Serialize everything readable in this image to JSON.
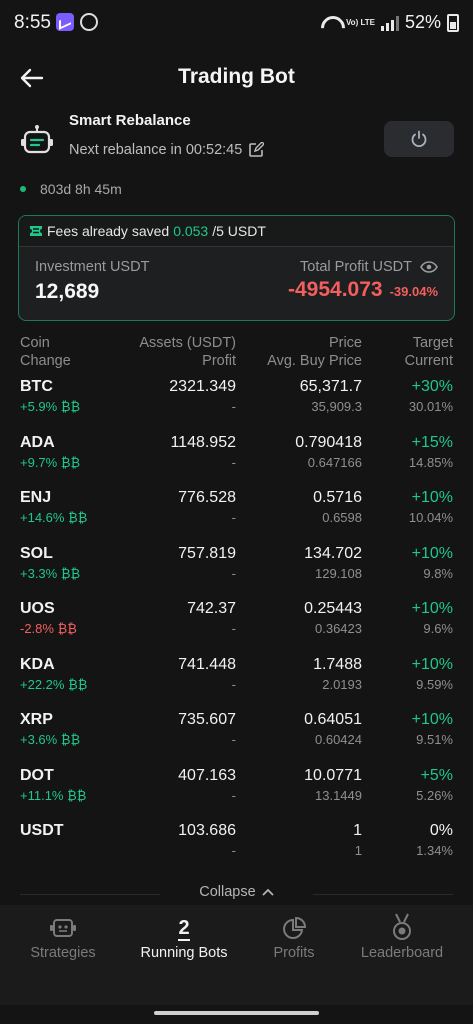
{
  "status_bar": {
    "time": "8:55",
    "battery": "52%",
    "network_label": "Vo) LTE"
  },
  "header": {
    "title": "Trading Bot"
  },
  "bot": {
    "name": "Smart Rebalance",
    "next_rebalance": "Next rebalance in 00:52:45",
    "runtime": "803d 8h 45m"
  },
  "summary": {
    "fees_label": "Fees already saved",
    "fees_value": "0.053",
    "fees_limit": "/5 USDT",
    "investment_label": "Investment USDT",
    "investment_value": "12,689",
    "profit_label": "Total Profit USDT",
    "profit_value": "-4954.073",
    "profit_pct": "-39.04%"
  },
  "table": {
    "headers": {
      "col1_line1": "Coin",
      "col1_line2": "Change",
      "col2_line1": "Assets (USDT)",
      "col2_line2": "Profit",
      "col3_line1": "Price",
      "col3_line2": "Avg. Buy Price",
      "col4_line1": "Target",
      "col4_line2": "Current"
    },
    "rows": [
      {
        "coin": "BTC",
        "change": "+5.9% ₿₿",
        "trend": "up",
        "assets": "2321.349",
        "profit": "-",
        "price": "65,371.7",
        "avg_buy": "35,909.3",
        "target": "+30%",
        "current": "30.01%"
      },
      {
        "coin": "ADA",
        "change": "+9.7% ₿₿",
        "trend": "up",
        "assets": "1148.952",
        "profit": "-",
        "price": "0.790418",
        "avg_buy": "0.647166",
        "target": "+15%",
        "current": "14.85%"
      },
      {
        "coin": "ENJ",
        "change": "+14.6% ₿₿",
        "trend": "up",
        "assets": "776.528",
        "profit": "-",
        "price": "0.5716",
        "avg_buy": "0.6598",
        "target": "+10%",
        "current": "10.04%"
      },
      {
        "coin": "SOL",
        "change": "+3.3% ₿₿",
        "trend": "up",
        "assets": "757.819",
        "profit": "-",
        "price": "134.702",
        "avg_buy": "129.108",
        "target": "+10%",
        "current": "9.8%"
      },
      {
        "coin": "UOS",
        "change": "-2.8% ₿₿",
        "trend": "down",
        "assets": "742.37",
        "profit": "-",
        "price": "0.25443",
        "avg_buy": "0.36423",
        "target": "+10%",
        "current": "9.6%"
      },
      {
        "coin": "KDA",
        "change": "+22.2% ₿₿",
        "trend": "up",
        "assets": "741.448",
        "profit": "-",
        "price": "1.7488",
        "avg_buy": "2.0193",
        "target": "+10%",
        "current": "9.59%"
      },
      {
        "coin": "XRP",
        "change": "+3.6% ₿₿",
        "trend": "up",
        "assets": "735.607",
        "profit": "-",
        "price": "0.64051",
        "avg_buy": "0.60424",
        "target": "+10%",
        "current": "9.51%"
      },
      {
        "coin": "DOT",
        "change": "+11.1% ₿₿",
        "trend": "up",
        "assets": "407.163",
        "profit": "-",
        "price": "10.0771",
        "avg_buy": "13.1449",
        "target": "+5%",
        "current": "5.26%"
      },
      {
        "coin": "USDT",
        "change": "",
        "trend": "none",
        "assets": "103.686",
        "profit": "-",
        "price": "1",
        "avg_buy": "1",
        "target": "0%",
        "current": "1.34%"
      }
    ]
  },
  "collapse_label": "Collapse",
  "bottom_nav": {
    "strategies": "Strategies",
    "running_count": "2",
    "running_bots": "Running Bots",
    "profits": "Profits",
    "leaderboard": "Leaderboard"
  },
  "colors": {
    "accent_green": "#1fc78a",
    "loss_red": "#f35e5e",
    "background": "#141414"
  }
}
